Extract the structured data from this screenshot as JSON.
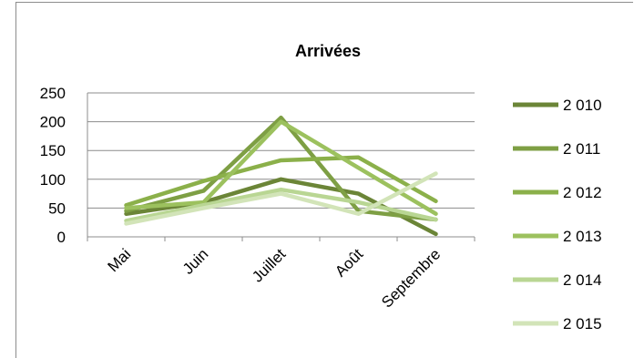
{
  "chart_data": {
    "type": "line",
    "title": "Arrivées",
    "xlabel": "",
    "ylabel": "",
    "categories": [
      "Mai",
      "Juin",
      "Juillet",
      "Août",
      "Septembre"
    ],
    "ylim": [
      0,
      250
    ],
    "yticks": [
      "0",
      "50",
      "100",
      "150",
      "200",
      "250"
    ],
    "grid": true,
    "legend_position": "right",
    "series": [
      {
        "name": "2 010",
        "color": "#6b8537",
        "values": [
          40,
          60,
          100,
          75,
          5
        ]
      },
      {
        "name": "2 011",
        "color": "#7e9f44",
        "values": [
          45,
          80,
          207,
          45,
          30
        ]
      },
      {
        "name": "2 012",
        "color": "#8bb04a",
        "values": [
          55,
          97,
          133,
          138,
          62
        ]
      },
      {
        "name": "2 013",
        "color": "#9cc15e",
        "values": [
          50,
          60,
          200,
          120,
          40
        ]
      },
      {
        "name": "2 014",
        "color": "#b9d693",
        "values": [
          28,
          55,
          82,
          60,
          30
        ]
      },
      {
        "name": "2 015",
        "color": "#d2e4b8",
        "values": [
          23,
          50,
          75,
          40,
          110
        ]
      }
    ]
  }
}
